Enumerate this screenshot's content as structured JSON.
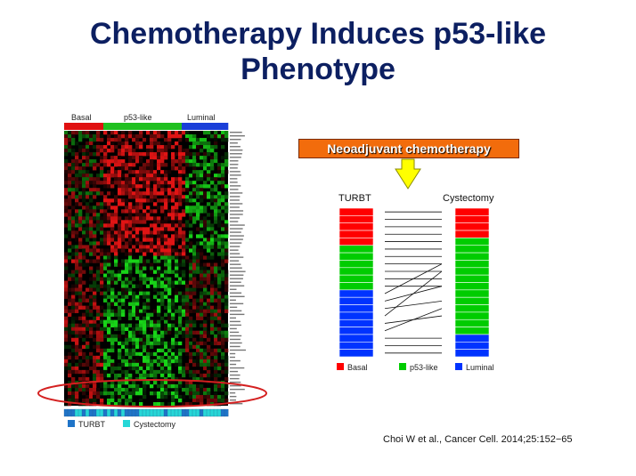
{
  "slide": {
    "title_line1": "Chemotherapy Induces p53-like",
    "title_line2": "Phenotype",
    "citation": "Choi W et al., Cancer Cell. 2014;25:152−65"
  },
  "heatmap": {
    "group_labels": [
      "Basal",
      "p53-like",
      "Luminal"
    ],
    "legend": [
      {
        "label": "TURBT",
        "color": "#1f74c8"
      },
      {
        "label": "Cystectomy",
        "color": "#27d7d7"
      }
    ],
    "colors": {
      "up": "#e01414",
      "down": "#18d418",
      "neutral": "#000000",
      "basal": "#e01010",
      "p53": "#20c020",
      "luminal": "#1a3fd8",
      "highlight": "#d42020"
    }
  },
  "diagram": {
    "treatment_label": "Neoadjuvant chemotherapy",
    "left_column_label": "TURBT",
    "right_column_label": "Cystectomy",
    "left_counts": {
      "basal": 5,
      "p53_like": 6,
      "luminal": 9
    },
    "right_counts": {
      "basal": 4,
      "p53_like": 13,
      "luminal": 3
    },
    "legend": [
      {
        "label": "Basal",
        "color": "#ff0000"
      },
      {
        "label": "p53-like",
        "color": "#00cc00"
      },
      {
        "label": "Luminal",
        "color": "#0033ff"
      }
    ],
    "arrow_color": "#ffff00"
  }
}
